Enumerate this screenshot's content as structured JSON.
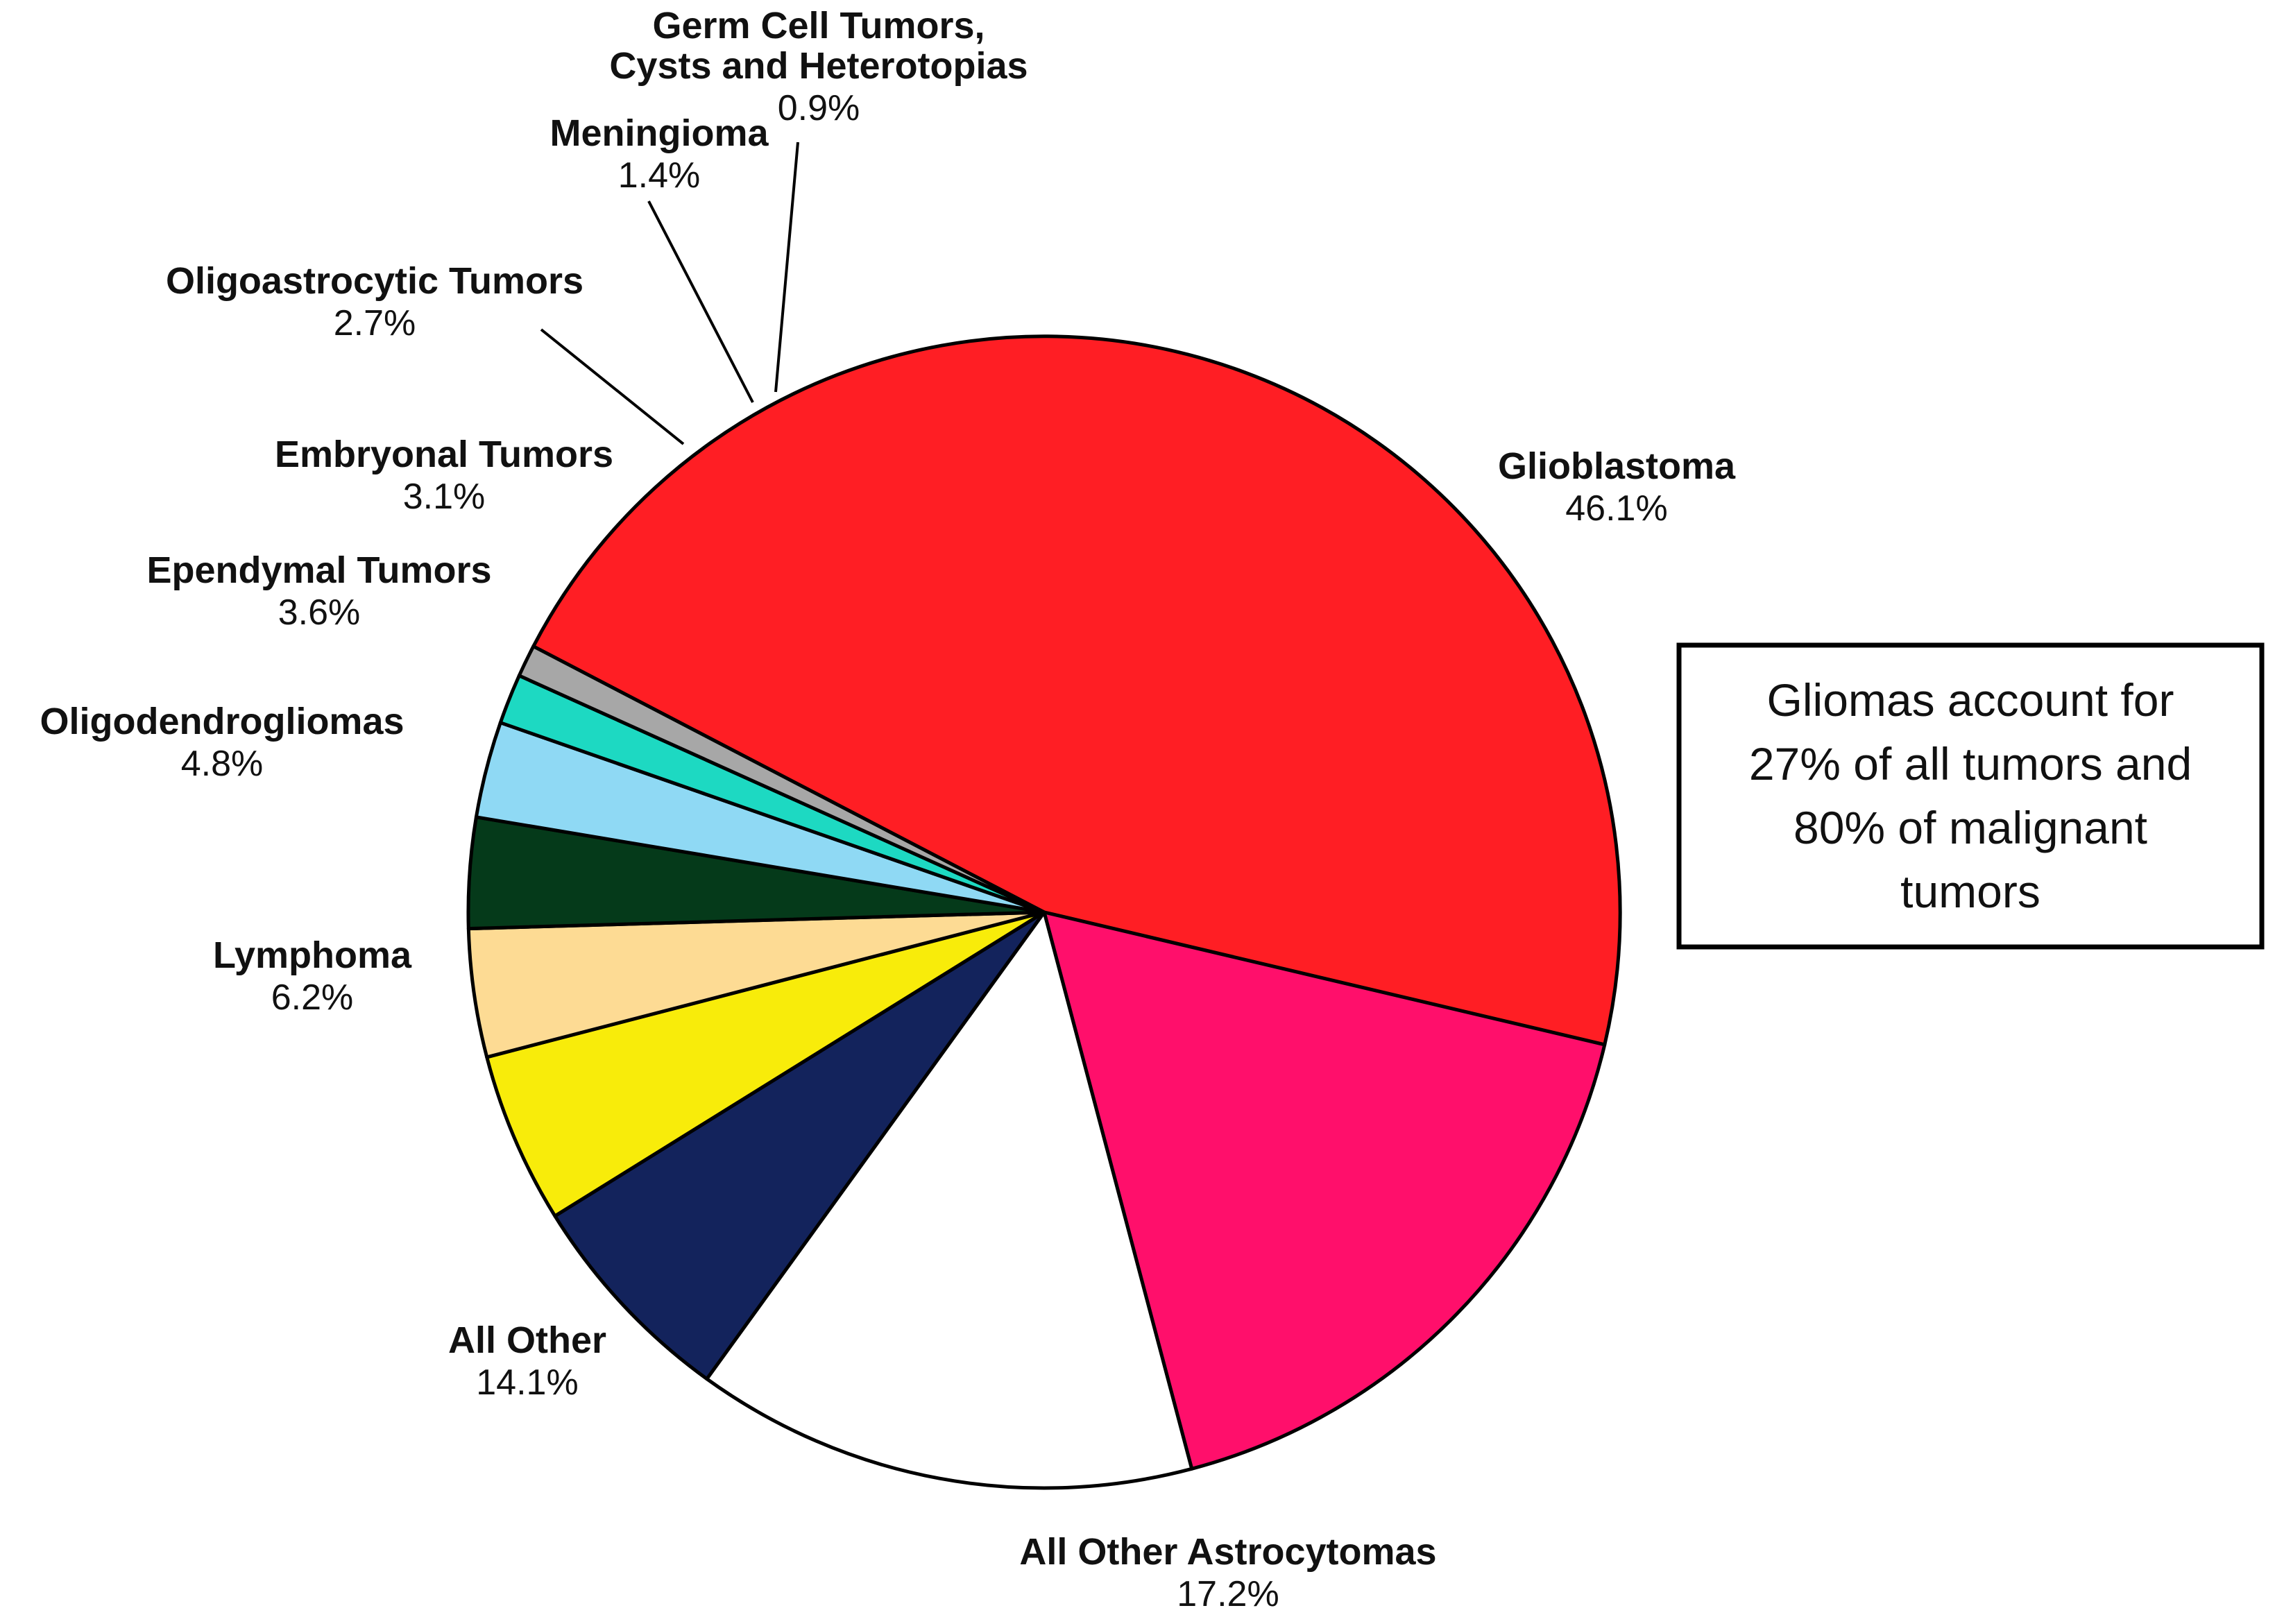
{
  "chart_data": {
    "type": "pie",
    "title": "",
    "slices": [
      {
        "label": "Glioblastoma",
        "value": 46.1,
        "pct_label": "46.1%",
        "color": "#ff1e24"
      },
      {
        "label": "All Other Astrocytomas",
        "value": 17.2,
        "pct_label": "17.2%",
        "color": "#ff0f6b"
      },
      {
        "label": "All Other",
        "value": 14.1,
        "pct_label": "14.1%",
        "color": "#ffffff"
      },
      {
        "label": "Lymphoma",
        "value": 6.2,
        "pct_label": "6.2%",
        "color": "#13235c"
      },
      {
        "label": "Oligodendrogliomas",
        "value": 4.8,
        "pct_label": "4.8%",
        "color": "#f8ec0a"
      },
      {
        "label": "Ependymal Tumors",
        "value": 3.6,
        "pct_label": "3.6%",
        "color": "#fddb94"
      },
      {
        "label": "Embryonal Tumors",
        "value": 3.1,
        "pct_label": "3.1%",
        "color": "#053a1a"
      },
      {
        "label": "Oligoastrocytic Tumors",
        "value": 2.7,
        "pct_label": "2.7%",
        "color": "#8fd9f4"
      },
      {
        "label": "Meningioma",
        "value": 1.4,
        "pct_label": "1.4%",
        "color": "#1dd9c2"
      },
      {
        "label": "Germ Cell Tumors,\nCysts and Heterotopias",
        "value": 0.9,
        "pct_label": "0.9%",
        "color": "#a7a7a7"
      }
    ]
  },
  "note": {
    "lines": [
      "Gliomas  account for",
      "27% of all tumors and",
      "80% of malignant",
      "tumors"
    ]
  }
}
